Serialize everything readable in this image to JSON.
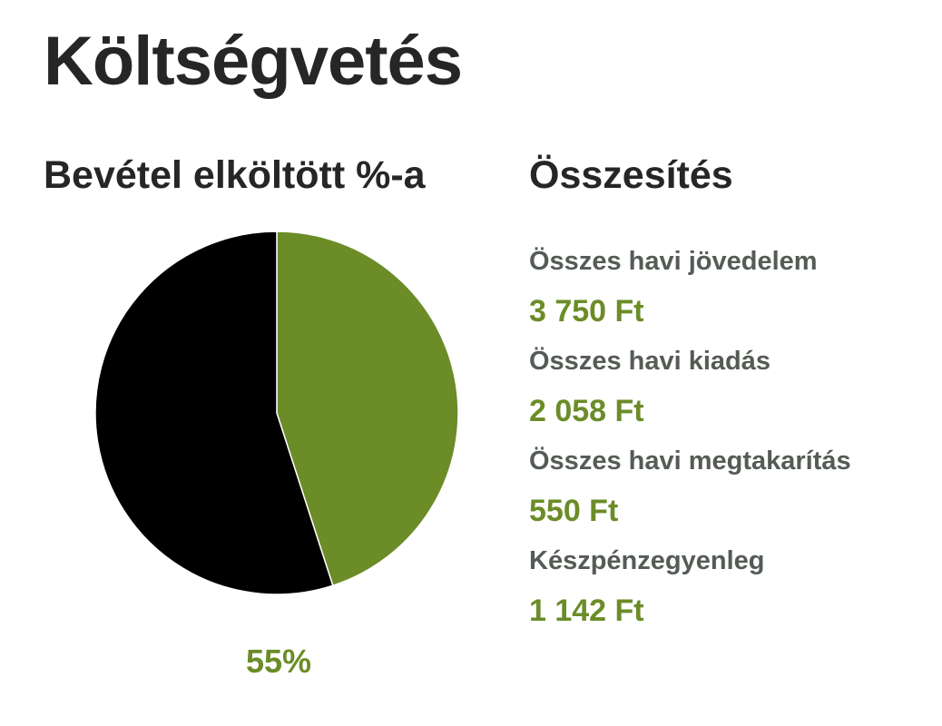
{
  "title": "Költségvetés",
  "chart_heading": "Bevétel elköltött %-a",
  "summary_heading": "Összesítés",
  "summary": {
    "items": [
      {
        "label": "Összes havi jövedelem",
        "value": "3 750 Ft"
      },
      {
        "label": "Összes havi kiadás",
        "value": "2 058 Ft"
      },
      {
        "label": "Összes havi megtakarítás",
        "value": "550 Ft"
      },
      {
        "label": "Készpénzegyenleg",
        "value": "1 142 Ft"
      }
    ]
  },
  "chart_data": {
    "type": "pie",
    "title": "Bevétel elköltött %-a",
    "slices": [
      {
        "value": 45,
        "color": "#6b8c27"
      },
      {
        "value": 55,
        "color": "#000000"
      }
    ],
    "data_label": "55%",
    "legend": false
  }
}
